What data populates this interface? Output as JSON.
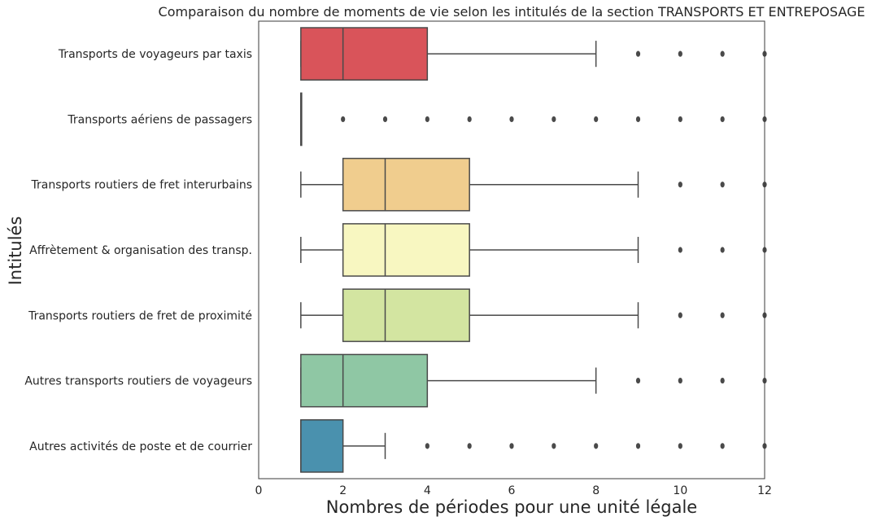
{
  "chart_data": {
    "type": "box",
    "orientation": "horizontal",
    "title": "Comparaison du nombre de moments de vie selon les intitulés de la section TRANSPORTS ET ENTREPOSAGE",
    "xlabel": "Nombres de périodes pour une unité légale",
    "ylabel": "Intitulés",
    "xlim": [
      0,
      12
    ],
    "xticks": [
      0,
      2,
      4,
      6,
      8,
      10,
      12
    ],
    "grid": false,
    "categories": [
      "Transports de voyageurs par taxis",
      "Transports aériens de passagers",
      "Transports routiers de fret interurbains",
      "Affrètement & organisation des transp.",
      "Transports routiers de fret de proximité",
      "Autres transports routiers de voyageurs",
      "Autres activités de poste et de courrier"
    ],
    "boxes": [
      {
        "whisker_low": 1,
        "q1": 1,
        "median": 2,
        "q3": 4,
        "whisker_high": 8,
        "outliers": [
          9,
          10,
          11,
          12
        ],
        "color": "#d9545a"
      },
      {
        "whisker_low": 1,
        "q1": 1,
        "median": 1,
        "q3": 1,
        "whisker_high": 1,
        "outliers": [
          2,
          3,
          4,
          5,
          6,
          7,
          8,
          9,
          10,
          11,
          12
        ],
        "color": "#f46d43"
      },
      {
        "whisker_low": 1,
        "q1": 2,
        "median": 3,
        "q3": 5,
        "whisker_high": 9,
        "outliers": [
          10,
          11,
          12
        ],
        "color": "#f0cd8e"
      },
      {
        "whisker_low": 1,
        "q1": 2,
        "median": 3,
        "q3": 5,
        "whisker_high": 9,
        "outliers": [
          10,
          11,
          12
        ],
        "color": "#f8f7c1"
      },
      {
        "whisker_low": 1,
        "q1": 2,
        "median": 3,
        "q3": 5,
        "whisker_high": 9,
        "outliers": [
          10,
          11,
          12
        ],
        "color": "#d3e5a1"
      },
      {
        "whisker_low": 1,
        "q1": 1,
        "median": 2,
        "q3": 4,
        "whisker_high": 8,
        "outliers": [
          9,
          10,
          11,
          12
        ],
        "color": "#8fc7a4"
      },
      {
        "whisker_low": 1,
        "q1": 1,
        "median": 1,
        "q3": 2,
        "whisker_high": 3,
        "outliers": [
          4,
          5,
          6,
          7,
          8,
          9,
          10,
          11,
          12
        ],
        "color": "#4a91ae"
      }
    ]
  }
}
